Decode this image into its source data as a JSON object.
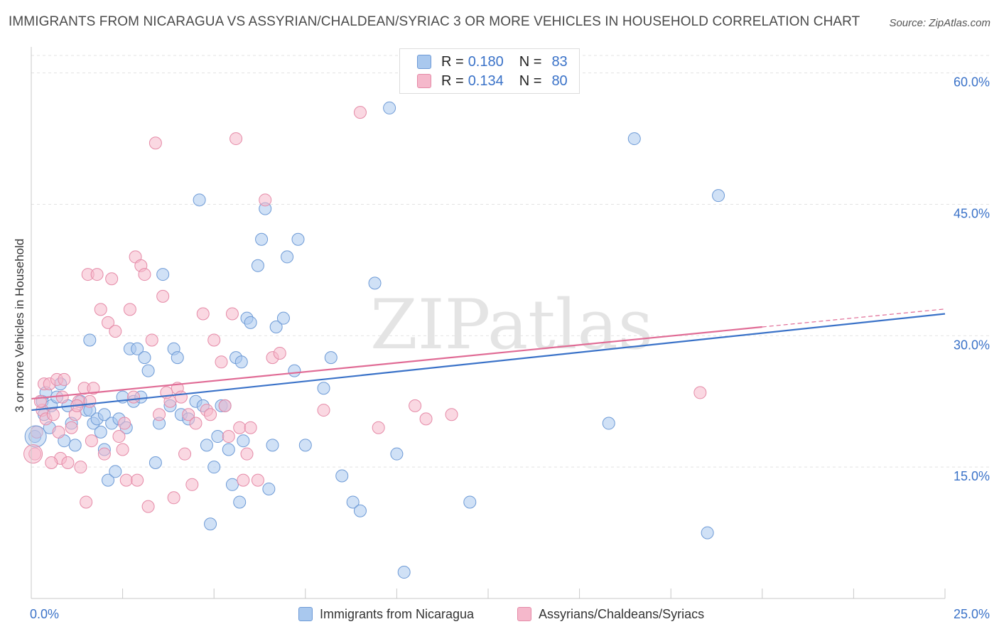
{
  "chart_data": {
    "type": "scatter",
    "title": "IMMIGRANTS FROM NICARAGUA VS ASSYRIAN/CHALDEAN/SYRIAC 3 OR MORE VEHICLES IN HOUSEHOLD CORRELATION CHART",
    "source": "Source: ZipAtlas.com",
    "ylabel": "3 or more Vehicles in Household",
    "xlim": [
      0,
      25
    ],
    "ylim": [
      0,
      62
    ],
    "y_ticks": [
      15,
      30,
      45,
      60
    ],
    "y_tick_labels": [
      "15.0%",
      "30.0%",
      "45.0%",
      "60.0%"
    ],
    "x_tick_labels": [
      "0.0%",
      "25.0%"
    ],
    "watermark": "ZIPatlas",
    "colors": {
      "blue_fill": "#a9c8ee",
      "blue_stroke": "#6d9ad6",
      "blue_line": "#3a72c8",
      "pink_fill": "#f5b8cb",
      "pink_stroke": "#e58aa7",
      "pink_line": "#e06b95",
      "axis_label": "#3a72c8",
      "grid": "#e3e3e3"
    },
    "legend": {
      "rows": [
        {
          "r_label": "R =",
          "r_value": "0.180",
          "n_label": "N =",
          "n_value": "83"
        },
        {
          "r_label": "R =",
          "r_value": "0.134",
          "n_label": "N =",
          "n_value": "80"
        }
      ]
    },
    "series": [
      {
        "name": "Immigrants from Nicaragua",
        "trend": {
          "x": [
            0,
            25
          ],
          "y": [
            21.5,
            32.5
          ]
        },
        "points": [
          [
            0.1,
            18.5
          ],
          [
            0.3,
            22.5
          ],
          [
            0.35,
            21.0
          ],
          [
            0.4,
            23.5
          ],
          [
            0.5,
            19.5
          ],
          [
            0.55,
            22.0
          ],
          [
            0.7,
            23.0
          ],
          [
            0.8,
            24.5
          ],
          [
            0.9,
            18.0
          ],
          [
            1.0,
            22.0
          ],
          [
            1.1,
            20.0
          ],
          [
            1.2,
            17.5
          ],
          [
            1.35,
            22.5
          ],
          [
            1.5,
            21.5
          ],
          [
            1.6,
            29.5
          ],
          [
            1.7,
            20.0
          ],
          [
            1.8,
            20.5
          ],
          [
            1.9,
            19.0
          ],
          [
            2.0,
            21.0
          ],
          [
            2.1,
            13.5
          ],
          [
            2.2,
            20.0
          ],
          [
            2.3,
            14.5
          ],
          [
            2.4,
            20.5
          ],
          [
            2.5,
            23.0
          ],
          [
            2.6,
            19.5
          ],
          [
            2.7,
            28.5
          ],
          [
            2.8,
            22.5
          ],
          [
            2.9,
            28.5
          ],
          [
            3.0,
            23.0
          ],
          [
            3.1,
            27.5
          ],
          [
            3.2,
            26.0
          ],
          [
            3.4,
            15.5
          ],
          [
            3.5,
            20.0
          ],
          [
            3.6,
            37.0
          ],
          [
            3.8,
            22.0
          ],
          [
            3.9,
            28.5
          ],
          [
            4.0,
            27.5
          ],
          [
            4.1,
            21.0
          ],
          [
            4.3,
            20.5
          ],
          [
            4.5,
            22.5
          ],
          [
            4.6,
            45.5
          ],
          [
            4.7,
            22.0
          ],
          [
            4.8,
            17.5
          ],
          [
            4.9,
            8.5
          ],
          [
            5.0,
            15.0
          ],
          [
            5.1,
            18.5
          ],
          [
            5.2,
            22.0
          ],
          [
            5.3,
            22.0
          ],
          [
            5.4,
            17.0
          ],
          [
            5.5,
            13.0
          ],
          [
            5.6,
            27.5
          ],
          [
            5.7,
            11.0
          ],
          [
            5.75,
            27.0
          ],
          [
            5.8,
            18.0
          ],
          [
            5.9,
            32.0
          ],
          [
            6.0,
            31.5
          ],
          [
            6.2,
            38.0
          ],
          [
            6.3,
            41.0
          ],
          [
            6.4,
            44.5
          ],
          [
            6.5,
            12.5
          ],
          [
            6.6,
            17.5
          ],
          [
            6.7,
            31.0
          ],
          [
            6.9,
            32.0
          ],
          [
            7.0,
            39.0
          ],
          [
            7.2,
            26.0
          ],
          [
            7.3,
            41.0
          ],
          [
            7.5,
            17.5
          ],
          [
            8.0,
            24.0
          ],
          [
            8.2,
            27.5
          ],
          [
            8.5,
            14.0
          ],
          [
            8.8,
            11.0
          ],
          [
            9.0,
            10.0
          ],
          [
            9.4,
            36.0
          ],
          [
            9.8,
            56.0
          ],
          [
            10.0,
            16.5
          ],
          [
            10.2,
            3.0
          ],
          [
            12.0,
            11.0
          ],
          [
            15.8,
            20.0
          ],
          [
            16.5,
            52.5
          ],
          [
            18.5,
            7.5
          ],
          [
            18.8,
            46.0
          ],
          [
            1.6,
            21.5
          ],
          [
            2.0,
            17.0
          ]
        ]
      },
      {
        "name": "Assyrians/Chaldeans/Syriacs",
        "trend": {
          "x": [
            0,
            20
          ],
          "y": [
            22.8,
            31.0
          ]
        },
        "points": [
          [
            0.1,
            16.5
          ],
          [
            0.15,
            19.0
          ],
          [
            0.3,
            21.5
          ],
          [
            0.35,
            24.5
          ],
          [
            0.4,
            20.5
          ],
          [
            0.5,
            24.5
          ],
          [
            0.6,
            21.0
          ],
          [
            0.7,
            25.0
          ],
          [
            0.75,
            19.0
          ],
          [
            0.8,
            16.0
          ],
          [
            0.85,
            23.0
          ],
          [
            0.9,
            25.0
          ],
          [
            1.0,
            15.5
          ],
          [
            1.1,
            19.5
          ],
          [
            1.2,
            21.0
          ],
          [
            1.3,
            22.5
          ],
          [
            1.35,
            15.0
          ],
          [
            1.45,
            24.0
          ],
          [
            1.5,
            11.0
          ],
          [
            1.55,
            37.0
          ],
          [
            1.6,
            22.5
          ],
          [
            1.7,
            24.0
          ],
          [
            1.8,
            37.0
          ],
          [
            1.9,
            33.0
          ],
          [
            2.0,
            16.5
          ],
          [
            2.1,
            31.5
          ],
          [
            2.2,
            36.5
          ],
          [
            2.3,
            30.5
          ],
          [
            2.4,
            18.5
          ],
          [
            2.5,
            17.0
          ],
          [
            2.6,
            13.5
          ],
          [
            2.7,
            33.0
          ],
          [
            2.8,
            23.0
          ],
          [
            2.85,
            39.0
          ],
          [
            2.9,
            13.5
          ],
          [
            3.0,
            38.0
          ],
          [
            3.1,
            37.0
          ],
          [
            3.2,
            10.5
          ],
          [
            3.3,
            29.5
          ],
          [
            3.4,
            52.0
          ],
          [
            3.5,
            21.0
          ],
          [
            3.6,
            34.5
          ],
          [
            3.8,
            22.5
          ],
          [
            3.9,
            11.5
          ],
          [
            4.0,
            24.0
          ],
          [
            4.1,
            23.0
          ],
          [
            4.2,
            16.5
          ],
          [
            4.3,
            21.0
          ],
          [
            4.4,
            13.0
          ],
          [
            4.5,
            20.0
          ],
          [
            4.7,
            32.5
          ],
          [
            4.8,
            21.5
          ],
          [
            5.0,
            29.5
          ],
          [
            5.2,
            27.0
          ],
          [
            5.3,
            22.0
          ],
          [
            5.4,
            18.5
          ],
          [
            5.5,
            32.5
          ],
          [
            5.6,
            52.5
          ],
          [
            5.7,
            19.5
          ],
          [
            5.8,
            13.5
          ],
          [
            5.9,
            16.5
          ],
          [
            6.0,
            19.5
          ],
          [
            6.4,
            45.5
          ],
          [
            6.6,
            27.5
          ],
          [
            6.8,
            28.0
          ],
          [
            8.0,
            21.5
          ],
          [
            9.0,
            55.5
          ],
          [
            9.5,
            19.5
          ],
          [
            10.5,
            22.0
          ],
          [
            10.8,
            20.5
          ],
          [
            11.5,
            21.0
          ],
          [
            18.3,
            23.5
          ],
          [
            0.55,
            15.5
          ],
          [
            1.25,
            22.0
          ],
          [
            2.55,
            20.0
          ],
          [
            3.7,
            23.5
          ],
          [
            4.9,
            21.0
          ],
          [
            6.2,
            13.5
          ],
          [
            1.65,
            18.0
          ],
          [
            0.25,
            22.5
          ]
        ]
      }
    ]
  }
}
